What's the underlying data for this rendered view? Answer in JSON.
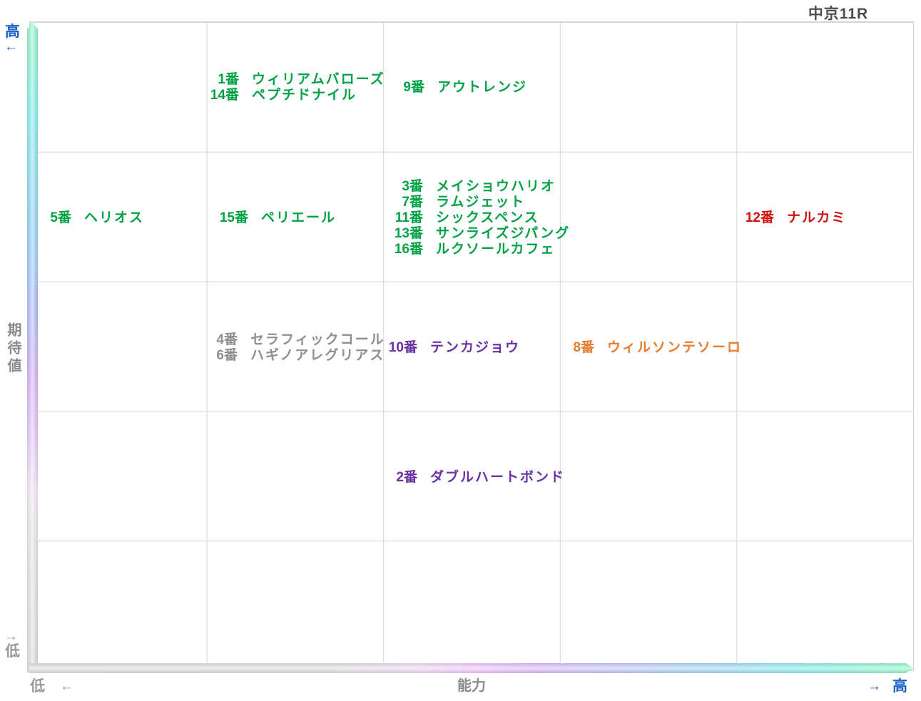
{
  "page": {
    "title": "中京11R"
  },
  "axes": {
    "y": {
      "title": "期待値",
      "high_label": "高",
      "high_arrow": "←",
      "low_label": "低",
      "low_arrow": "→"
    },
    "x": {
      "title": "能力",
      "low_label": "低",
      "low_arrow": "←",
      "high_label": "高",
      "high_arrow": "→"
    }
  },
  "colors": {
    "favorite_green": "#00a245",
    "danger_red": "#d01212",
    "neutral_gray": "#8e8e8e",
    "mark_purple": "#6a30a5",
    "mark_orange": "#e57c2e",
    "axis_blue": "#1b63c9",
    "axis_gray": "#9a9a9a",
    "grid_line": "#d5d5d5"
  },
  "chart_data": {
    "type": "scatter",
    "title": "中京11R",
    "xlabel": "能力",
    "ylabel": "期待値",
    "x_range_labels": {
      "left": "低",
      "right": "高"
    },
    "y_range_labels": {
      "top": "高",
      "bottom": "低"
    },
    "grid": {
      "rows": 5,
      "cols": 5
    },
    "legend": "horses placed by expected-value (y) vs ability (x); row 1 = top/high expectation, col 5 = right/high ability",
    "groups": [
      {
        "cell": {
          "row": 1,
          "col": 2
        },
        "color": "#00a245",
        "entries": [
          {
            "num": "1番",
            "name": "ウィリアムバローズ"
          },
          {
            "num": "14番",
            "name": "ペプチドナイル"
          }
        ]
      },
      {
        "cell": {
          "row": 1,
          "col": 3
        },
        "color": "#00a245",
        "entries": [
          {
            "num": "9番",
            "name": "アウトレンジ"
          }
        ]
      },
      {
        "cell": {
          "row": 2,
          "col": 1
        },
        "color": "#00a245",
        "entries": [
          {
            "num": "5番",
            "name": "ヘリオス"
          }
        ]
      },
      {
        "cell": {
          "row": 2,
          "col": 2
        },
        "color": "#00a245",
        "entries": [
          {
            "num": "15番",
            "name": "ペリエール"
          }
        ]
      },
      {
        "cell": {
          "row": 2,
          "col": 3
        },
        "color": "#00a245",
        "entries": [
          {
            "num": "3番",
            "name": "メイショウハリオ"
          },
          {
            "num": "7番",
            "name": "ラムジェット"
          },
          {
            "num": "11番",
            "name": "シックスペンス"
          },
          {
            "num": "13番",
            "name": "サンライズジパング"
          },
          {
            "num": "16番",
            "name": "ルクソールカフェ"
          }
        ]
      },
      {
        "cell": {
          "row": 2,
          "col": 5
        },
        "color": "#d01212",
        "entries": [
          {
            "num": "12番",
            "name": "ナルカミ"
          }
        ]
      },
      {
        "cell": {
          "row": 3,
          "col": 2
        },
        "color": "#8e8e8e",
        "entries": [
          {
            "num": "4番",
            "name": "セラフィックコール"
          },
          {
            "num": "6番",
            "name": "ハギノアレグリアス"
          }
        ]
      },
      {
        "cell": {
          "row": 3,
          "col": 3
        },
        "color": "#6a30a5",
        "entries": [
          {
            "num": "10番",
            "name": "テンカジョウ"
          }
        ]
      },
      {
        "cell": {
          "row": 3,
          "col": 4
        },
        "color": "#e57c2e",
        "entries": [
          {
            "num": "8番",
            "name": "ウィルソンテソーロ"
          }
        ]
      },
      {
        "cell": {
          "row": 4,
          "col": 3
        },
        "color": "#6a30a5",
        "entries": [
          {
            "num": "2番",
            "name": "ダブルハートボンド"
          }
        ]
      }
    ]
  }
}
